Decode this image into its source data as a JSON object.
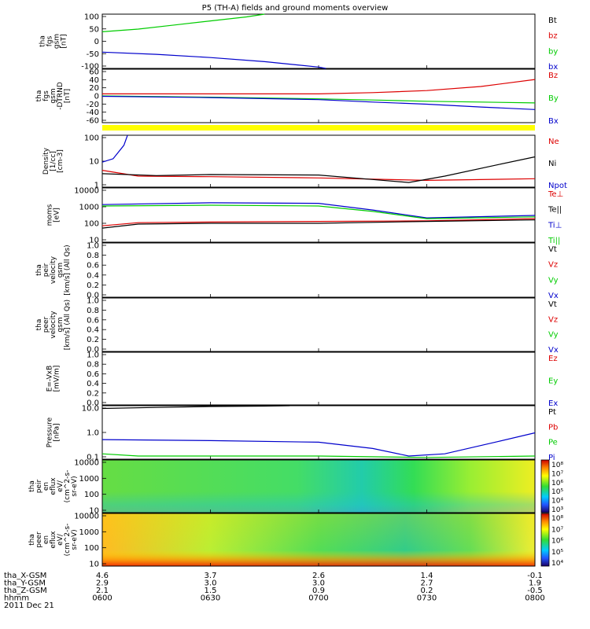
{
  "title": "P5 (TH-A) fields and ground moments overview",
  "colors": {
    "black": "#000000",
    "red": "#dd0000",
    "green": "#00cc00",
    "blue": "#0000cc",
    "yellow": "#ffff00"
  },
  "panels": [
    {
      "id": "fgs-gsm",
      "ylabel_lines": [
        "tha",
        "fgs",
        "gsm",
        "[nT]"
      ],
      "ticks": [
        "100",
        "50",
        "0",
        "-50",
        "-100"
      ],
      "ylim": [
        -100,
        100
      ],
      "legend": [
        {
          "text": "Bt",
          "color": "#000000"
        },
        {
          "text": "bz",
          "color": "#dd0000"
        },
        {
          "text": "by",
          "color": "#00cc00"
        },
        {
          "text": "bx",
          "color": "#0000cc"
        }
      ]
    },
    {
      "id": "fgs-gsm-detrend",
      "ylabel_lines": [
        "tha",
        "fgs",
        "gsm",
        "-DTRND",
        "[nT]"
      ],
      "ticks": [
        "60",
        "40",
        "20",
        "0",
        "-20",
        "-40",
        "-60"
      ],
      "ylim": [
        -70,
        60
      ],
      "legend": [
        {
          "text": "Bz",
          "color": "#dd0000"
        },
        {
          "text": "By",
          "color": "#00cc00"
        },
        {
          "text": "Bx",
          "color": "#0000cc"
        }
      ]
    },
    {
      "id": "density",
      "ylabel_lines": [
        "Density",
        "[1/cc]",
        "[cm-3]"
      ],
      "ticks": [
        "100",
        "10",
        "1"
      ],
      "ylim": [
        0.4,
        200
      ],
      "log": true,
      "legend": [
        {
          "text": "Ne",
          "color": "#dd0000"
        },
        {
          "text": "Ni",
          "color": "#000000"
        },
        {
          "text": "Npot",
          "color": "#0000cc"
        }
      ]
    },
    {
      "id": "temperature",
      "ylabel_lines": [
        "moms",
        "[eV]"
      ],
      "ticks": [
        "10000",
        "1000",
        "100",
        "10"
      ],
      "ylim": [
        10,
        10000
      ],
      "log": true,
      "legend": [
        {
          "text": "Te⊥",
          "color": "#dd0000"
        },
        {
          "text": "Te||",
          "color": "#000000"
        },
        {
          "text": "Ti⊥",
          "color": "#0000cc"
        },
        {
          "text": "Ti||",
          "color": "#00cc00"
        }
      ]
    },
    {
      "id": "peir-velocity",
      "ylabel_lines": [
        "tha",
        "peir",
        "velocity",
        "gsm",
        "[km/s] (All Qs)"
      ],
      "ticks": [
        "1.0",
        "0.8",
        "0.6",
        "0.4",
        "0.2",
        "0.0"
      ],
      "ylim": [
        0,
        1
      ],
      "legend": [
        {
          "text": "Vt",
          "color": "#000000"
        },
        {
          "text": "Vz",
          "color": "#dd0000"
        },
        {
          "text": "Vy",
          "color": "#00cc00"
        },
        {
          "text": "Vx",
          "color": "#0000cc"
        }
      ]
    },
    {
      "id": "peer-velocity",
      "ylabel_lines": [
        "tha",
        "peer",
        "velocity",
        "gsm",
        "[km/s] (All Qs)"
      ],
      "ticks": [
        "1.0",
        "0.8",
        "0.6",
        "0.4",
        "0.2",
        "0.0"
      ],
      "ylim": [
        0,
        1
      ],
      "legend": [
        {
          "text": "Vt",
          "color": "#000000"
        },
        {
          "text": "Vz",
          "color": "#dd0000"
        },
        {
          "text": "Vy",
          "color": "#00cc00"
        },
        {
          "text": "Vx",
          "color": "#0000cc"
        }
      ]
    },
    {
      "id": "efield",
      "ylabel_lines": [
        "E=-VxB",
        "[mV/m]"
      ],
      "ticks": [
        "1.0",
        "0.8",
        "0.6",
        "0.4",
        "0.2",
        "0.0"
      ],
      "ylim": [
        0,
        1
      ],
      "legend": [
        {
          "text": "Ez",
          "color": "#dd0000"
        },
        {
          "text": "Ey",
          "color": "#00cc00"
        },
        {
          "text": "Ex",
          "color": "#0000cc"
        }
      ]
    },
    {
      "id": "pressure",
      "ylabel_lines": [
        "Pressure",
        "[nPa]"
      ],
      "ticks": [
        "10.0",
        "1.0",
        "0.1"
      ],
      "ylim": [
        0.02,
        20
      ],
      "log": true,
      "legend": [
        {
          "text": "Pt",
          "color": "#000000"
        },
        {
          "text": "Pb",
          "color": "#dd0000"
        },
        {
          "text": "Pe",
          "color": "#00cc00"
        },
        {
          "text": "Pi",
          "color": "#0000cc"
        }
      ]
    },
    {
      "id": "peir-eflux",
      "ylabel_lines": [
        "tha",
        "peir",
        "en",
        "eflux",
        "eV/",
        "(cm^2-s-",
        "sr-eV)"
      ],
      "ticks": [
        "10000",
        "1000",
        "100",
        "10"
      ],
      "ylim": [
        10,
        10000
      ],
      "log": true,
      "colorbar": {
        "labels": [
          "10⁸",
          "10⁷",
          "10⁶",
          "10⁵",
          "10⁴",
          "10³"
        ]
      }
    },
    {
      "id": "peer-eflux",
      "ylabel_lines": [
        "tha",
        "peer",
        "en",
        "eflux",
        "eV/",
        "(cm^2-s-",
        "sr-eV)"
      ],
      "ticks": [
        "10000",
        "1000",
        "100",
        "10"
      ],
      "ylim": [
        10,
        10000
      ],
      "log": true,
      "colorbar": {
        "labels": [
          "10⁸",
          "10⁷",
          "10⁶",
          "10⁵",
          "10⁴"
        ]
      }
    }
  ],
  "footer": {
    "rows": [
      {
        "label": "tha_X-GSM",
        "values": [
          "4.6",
          "3.7",
          "2.6",
          "1.4",
          "-0.1"
        ]
      },
      {
        "label": "tha_Y-GSM",
        "values": [
          "2.9",
          "3.0",
          "3.0",
          "2.7",
          "1.9"
        ]
      },
      {
        "label": "tha_Z-GSM",
        "values": [
          "2.1",
          "1.5",
          "0.9",
          "0.2",
          "-0.5"
        ]
      },
      {
        "label": "hhmm",
        "values": [
          "0600",
          "0630",
          "0700",
          "0730",
          "0800"
        ]
      }
    ],
    "date": "2011 Dec 21"
  },
  "chart_data": {
    "type": "line",
    "title": "P5 (TH-A) fields and ground moments overview",
    "x": [
      "0600",
      "0630",
      "0700",
      "0730",
      "0800"
    ],
    "xlim": [
      "0600",
      "0800"
    ],
    "panels": [
      {
        "id": "fgs-gsm",
        "ylim": [
          -100,
          100
        ],
        "series": [
          {
            "name": "by",
            "x": [
              "0600",
              "0610",
              "0620",
              "0630",
              "0640",
              "0645"
            ],
            "y": [
              35,
              45,
              60,
              75,
              90,
              100
            ]
          },
          {
            "name": "bx",
            "x": [
              "0600",
              "0615",
              "0630",
              "0645",
              "0700",
              "0702"
            ],
            "y": [
              -40,
              -48,
              -60,
              -75,
              -95,
              -100
            ]
          }
        ]
      },
      {
        "id": "fgs-gsm-detrend",
        "ylim": [
          -70,
          60
        ],
        "series": [
          {
            "name": "Bz",
            "x": [
              "0600",
              "0630",
              "0700",
              "0715",
              "0730",
              "0745",
              "0800"
            ],
            "y": [
              0,
              0,
              0,
              3,
              8,
              18,
              35
            ]
          },
          {
            "name": "By",
            "x": [
              "0600",
              "0630",
              "0700",
              "0715",
              "0730",
              "0745",
              "0800"
            ],
            "y": [
              -5,
              -8,
              -12,
              -15,
              -18,
              -20,
              -22
            ]
          },
          {
            "name": "Bx",
            "x": [
              "0600",
              "0630",
              "0700",
              "0715",
              "0730",
              "0745",
              "0800"
            ],
            "y": [
              -6,
              -9,
              -14,
              -20,
              -25,
              -32,
              -38
            ]
          }
        ]
      },
      {
        "id": "density",
        "ylim": [
          0.4,
          200
        ],
        "series": [
          {
            "name": "Npot",
            "x": [
              "0600",
              "0603",
              "0606",
              "0607"
            ],
            "y": [
              8,
              12,
              60,
              200
            ]
          },
          {
            "name": "Ne",
            "x": [
              "0600",
              "0610",
              "0630",
              "0700",
              "0730",
              "0800"
            ],
            "y": [
              3,
              1.5,
              1.4,
              1.2,
              0.9,
              1.1
            ]
          },
          {
            "name": "Ni",
            "x": [
              "0600",
              "0615",
              "0630",
              "0700",
              "0715",
              "0725",
              "0735",
              "0750",
              "0800"
            ],
            "y": [
              2,
              1.6,
              1.8,
              1.7,
              1.0,
              0.7,
              1.5,
              6,
              15
            ]
          }
        ]
      },
      {
        "id": "temperature",
        "ylim": [
          10,
          10000
        ],
        "series": [
          {
            "name": "Ti⊥",
            "x": [
              "0600",
              "0630",
              "0700",
              "0715",
              "0730",
              "0800"
            ],
            "y": [
              1200,
              1500,
              1400,
              600,
              220,
              300
            ]
          },
          {
            "name": "Ti||",
            "x": [
              "0600",
              "0630",
              "0700",
              "0715",
              "0730",
              "0800"
            ],
            "y": [
              1000,
              1100,
              1000,
              500,
              200,
              250
            ]
          },
          {
            "name": "Te⊥",
            "x": [
              "0600",
              "0610",
              "0630",
              "0700",
              "0730",
              "0800"
            ],
            "y": [
              80,
              120,
              130,
              140,
              150,
              200
            ]
          },
          {
            "name": "Te||",
            "x": [
              "0600",
              "0610",
              "0630",
              "0700",
              "0730",
              "0800"
            ],
            "y": [
              60,
              100,
              110,
              110,
              140,
              170
            ]
          }
        ]
      },
      {
        "id": "pressure",
        "ylim": [
          0.02,
          20
        ],
        "series": [
          {
            "name": "Pt",
            "x": [
              "0600",
              "0615",
              "0630",
              "0645",
              "0652"
            ],
            "y": [
              14,
              16,
              18,
              19,
              20
            ]
          },
          {
            "name": "Pi",
            "x": [
              "0600",
              "0630",
              "0700",
              "0715",
              "0725",
              "0735",
              "0750",
              "0800"
            ],
            "y": [
              0.25,
              0.22,
              0.18,
              0.08,
              0.03,
              0.04,
              0.2,
              0.6
            ]
          },
          {
            "name": "Pe",
            "x": [
              "0600",
              "0610",
              "0630",
              "0700",
              "0730",
              "0800"
            ],
            "y": [
              0.04,
              0.03,
              0.03,
              0.03,
              0.025,
              0.03
            ]
          }
        ]
      }
    ],
    "spectrograms": [
      {
        "id": "peir-eflux",
        "type": "heatmap",
        "ylim": [
          10,
          10000
        ],
        "zlim": [
          "10³",
          "10⁸"
        ]
      },
      {
        "id": "peer-eflux",
        "type": "heatmap",
        "ylim": [
          10,
          10000
        ],
        "zlim": [
          "10⁴",
          "10⁸"
        ]
      }
    ]
  }
}
